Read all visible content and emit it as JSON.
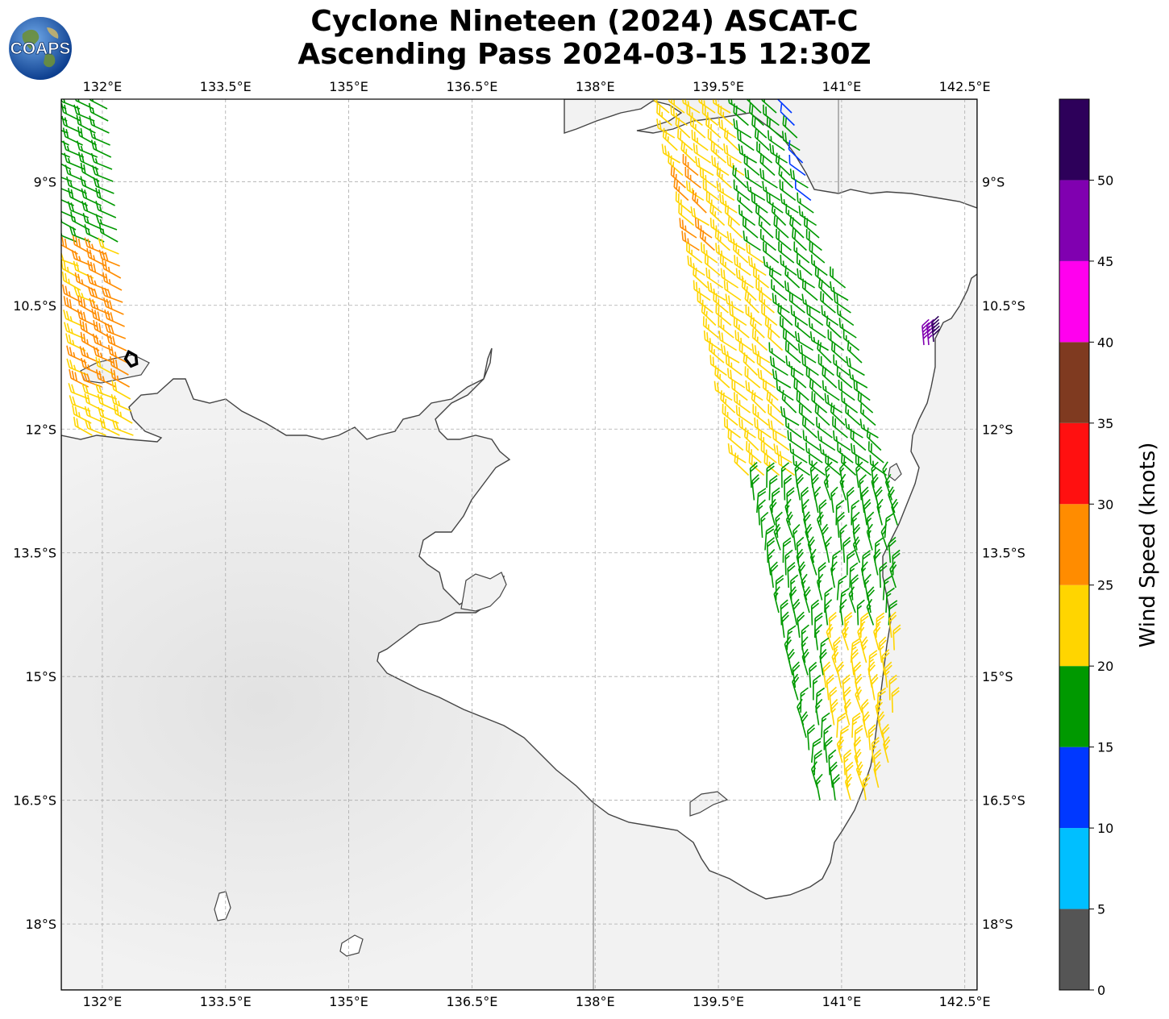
{
  "title": {
    "line1": "Cyclone Nineteen (2024) ASCAT-C",
    "line2": "Ascending Pass 2024-03-15 12:30Z"
  },
  "logo": {
    "text": "COAPS",
    "icon": "globe-icon"
  },
  "map": {
    "lon_range": [
      131.5,
      142.65
    ],
    "lat_range": [
      -18.8,
      -8.0
    ],
    "lon_ticks": [
      {
        "value": 132.0,
        "label": "132°E"
      },
      {
        "value": 133.5,
        "label": "133.5°E"
      },
      {
        "value": 135.0,
        "label": "135°E"
      },
      {
        "value": 136.5,
        "label": "136.5°E"
      },
      {
        "value": 138.0,
        "label": "138°E"
      },
      {
        "value": 139.5,
        "label": "139.5°E"
      },
      {
        "value": 141.0,
        "label": "141°E"
      },
      {
        "value": 142.5,
        "label": "142.5°E"
      }
    ],
    "lat_ticks": [
      {
        "value": -9.0,
        "label": "9°S"
      },
      {
        "value": -10.5,
        "label": "10.5°S"
      },
      {
        "value": -12.0,
        "label": "12°S"
      },
      {
        "value": -13.5,
        "label": "13.5°S"
      },
      {
        "value": -15.0,
        "label": "15°S"
      },
      {
        "value": -16.5,
        "label": "16.5°S"
      },
      {
        "value": -18.0,
        "label": "18°S"
      }
    ],
    "grid": true,
    "land_color": "#f2f2f2",
    "coast_color": "#444444",
    "storm_center": {
      "lon": 132.35,
      "lat": -11.15
    }
  },
  "colorbar": {
    "label": "Wind Speed (knots)",
    "range": [
      0,
      55
    ],
    "ticks": [
      {
        "value": 0,
        "label": "0"
      },
      {
        "value": 5,
        "label": "5"
      },
      {
        "value": 10,
        "label": "10"
      },
      {
        "value": 15,
        "label": "15"
      },
      {
        "value": 20,
        "label": "20"
      },
      {
        "value": 25,
        "label": "25"
      },
      {
        "value": 30,
        "label": "30"
      },
      {
        "value": 35,
        "label": "35"
      },
      {
        "value": 40,
        "label": "40"
      },
      {
        "value": 45,
        "label": "45"
      },
      {
        "value": 50,
        "label": "50"
      }
    ],
    "bins": [
      {
        "from": 0,
        "to": 5,
        "color": "#555555"
      },
      {
        "from": 5,
        "to": 10,
        "color": "#00bfff"
      },
      {
        "from": 10,
        "to": 15,
        "color": "#0038ff"
      },
      {
        "from": 15,
        "to": 20,
        "color": "#009900"
      },
      {
        "from": 20,
        "to": 25,
        "color": "#ffd500"
      },
      {
        "from": 25,
        "to": 30,
        "color": "#ff8c00"
      },
      {
        "from": 30,
        "to": 35,
        "color": "#ff1010"
      },
      {
        "from": 35,
        "to": 40,
        "color": "#7f3a20"
      },
      {
        "from": 40,
        "to": 45,
        "color": "#ff00ee"
      },
      {
        "from": 45,
        "to": 50,
        "color": "#8000b0"
      },
      {
        "from": 50,
        "to": 55,
        "color": "#2d005a"
      }
    ]
  }
}
